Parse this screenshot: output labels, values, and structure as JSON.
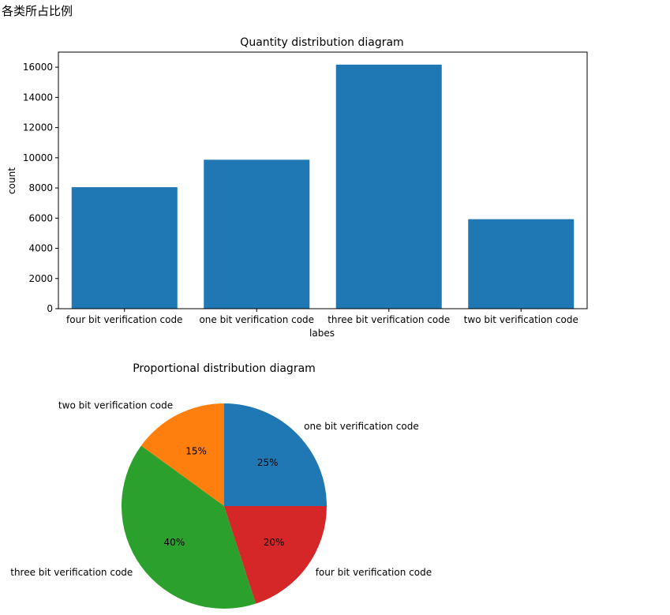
{
  "heading": "各类所占比例",
  "chart_data": [
    {
      "type": "bar",
      "title": "Quantity distribution diagram",
      "xlabel": "labes",
      "ylabel": "count",
      "categories": [
        "four bit verification code",
        "one bit verification code",
        "three bit verification code",
        "two bit verification code"
      ],
      "values": [
        8050,
        9870,
        16170,
        5930
      ],
      "ylim": [
        0,
        17000
      ],
      "yticks": [
        0,
        2000,
        4000,
        6000,
        8000,
        10000,
        12000,
        14000,
        16000
      ],
      "bar_color": "#1f77b4",
      "grid": false,
      "legend": "none"
    },
    {
      "type": "pie",
      "title": "Proportional distribution diagram",
      "labels": [
        "one bit verification code",
        "two bit verification code",
        "three bit verification code",
        "four bit verification code"
      ],
      "values": [
        25,
        15,
        40,
        20
      ],
      "pct_labels": [
        "25%",
        "15%",
        "40%",
        "20%"
      ],
      "colors": [
        "#1f77b4",
        "#ff7f0e",
        "#2ca02c",
        "#d62728"
      ],
      "start_angle": 0,
      "direction": "counterclockwise"
    }
  ]
}
